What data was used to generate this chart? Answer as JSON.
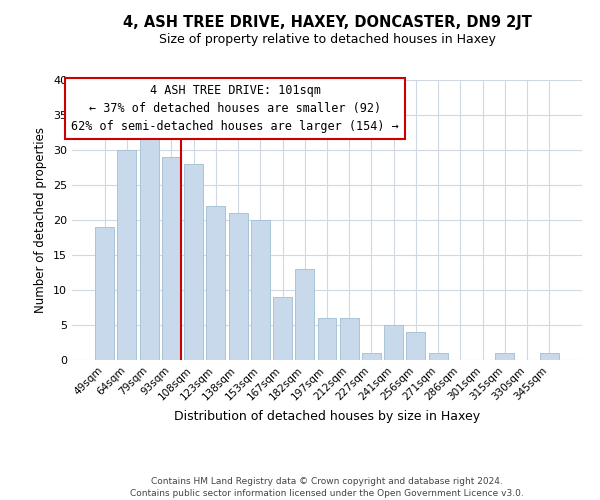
{
  "title": "4, ASH TREE DRIVE, HAXEY, DONCASTER, DN9 2JT",
  "subtitle": "Size of property relative to detached houses in Haxey",
  "xlabel": "Distribution of detached houses by size in Haxey",
  "ylabel": "Number of detached properties",
  "bar_labels": [
    "49sqm",
    "64sqm",
    "79sqm",
    "93sqm",
    "108sqm",
    "123sqm",
    "138sqm",
    "153sqm",
    "167sqm",
    "182sqm",
    "197sqm",
    "212sqm",
    "227sqm",
    "241sqm",
    "256sqm",
    "271sqm",
    "286sqm",
    "301sqm",
    "315sqm",
    "330sqm",
    "345sqm"
  ],
  "bar_values": [
    19,
    30,
    32,
    29,
    28,
    22,
    21,
    20,
    9,
    13,
    6,
    6,
    1,
    5,
    4,
    1,
    0,
    0,
    1,
    0,
    1
  ],
  "bar_color": "#c8d9eb",
  "bar_edge_color": "#a8c4d8",
  "highlight_line_color": "#cc0000",
  "highlight_line_bar_index": 3,
  "ylim": [
    0,
    40
  ],
  "yticks": [
    0,
    5,
    10,
    15,
    20,
    25,
    30,
    35,
    40
  ],
  "annotation_title": "4 ASH TREE DRIVE: 101sqm",
  "annotation_line1": "← 37% of detached houses are smaller (92)",
  "annotation_line2": "62% of semi-detached houses are larger (154) →",
  "annotation_box_color": "#ffffff",
  "annotation_box_edge": "#cc0000",
  "footnote1": "Contains HM Land Registry data © Crown copyright and database right 2024.",
  "footnote2": "Contains public sector information licensed under the Open Government Licence v3.0.",
  "background_color": "#ffffff",
  "grid_color": "#d0d8e4",
  "figsize": [
    6.0,
    5.0
  ],
  "dpi": 100
}
